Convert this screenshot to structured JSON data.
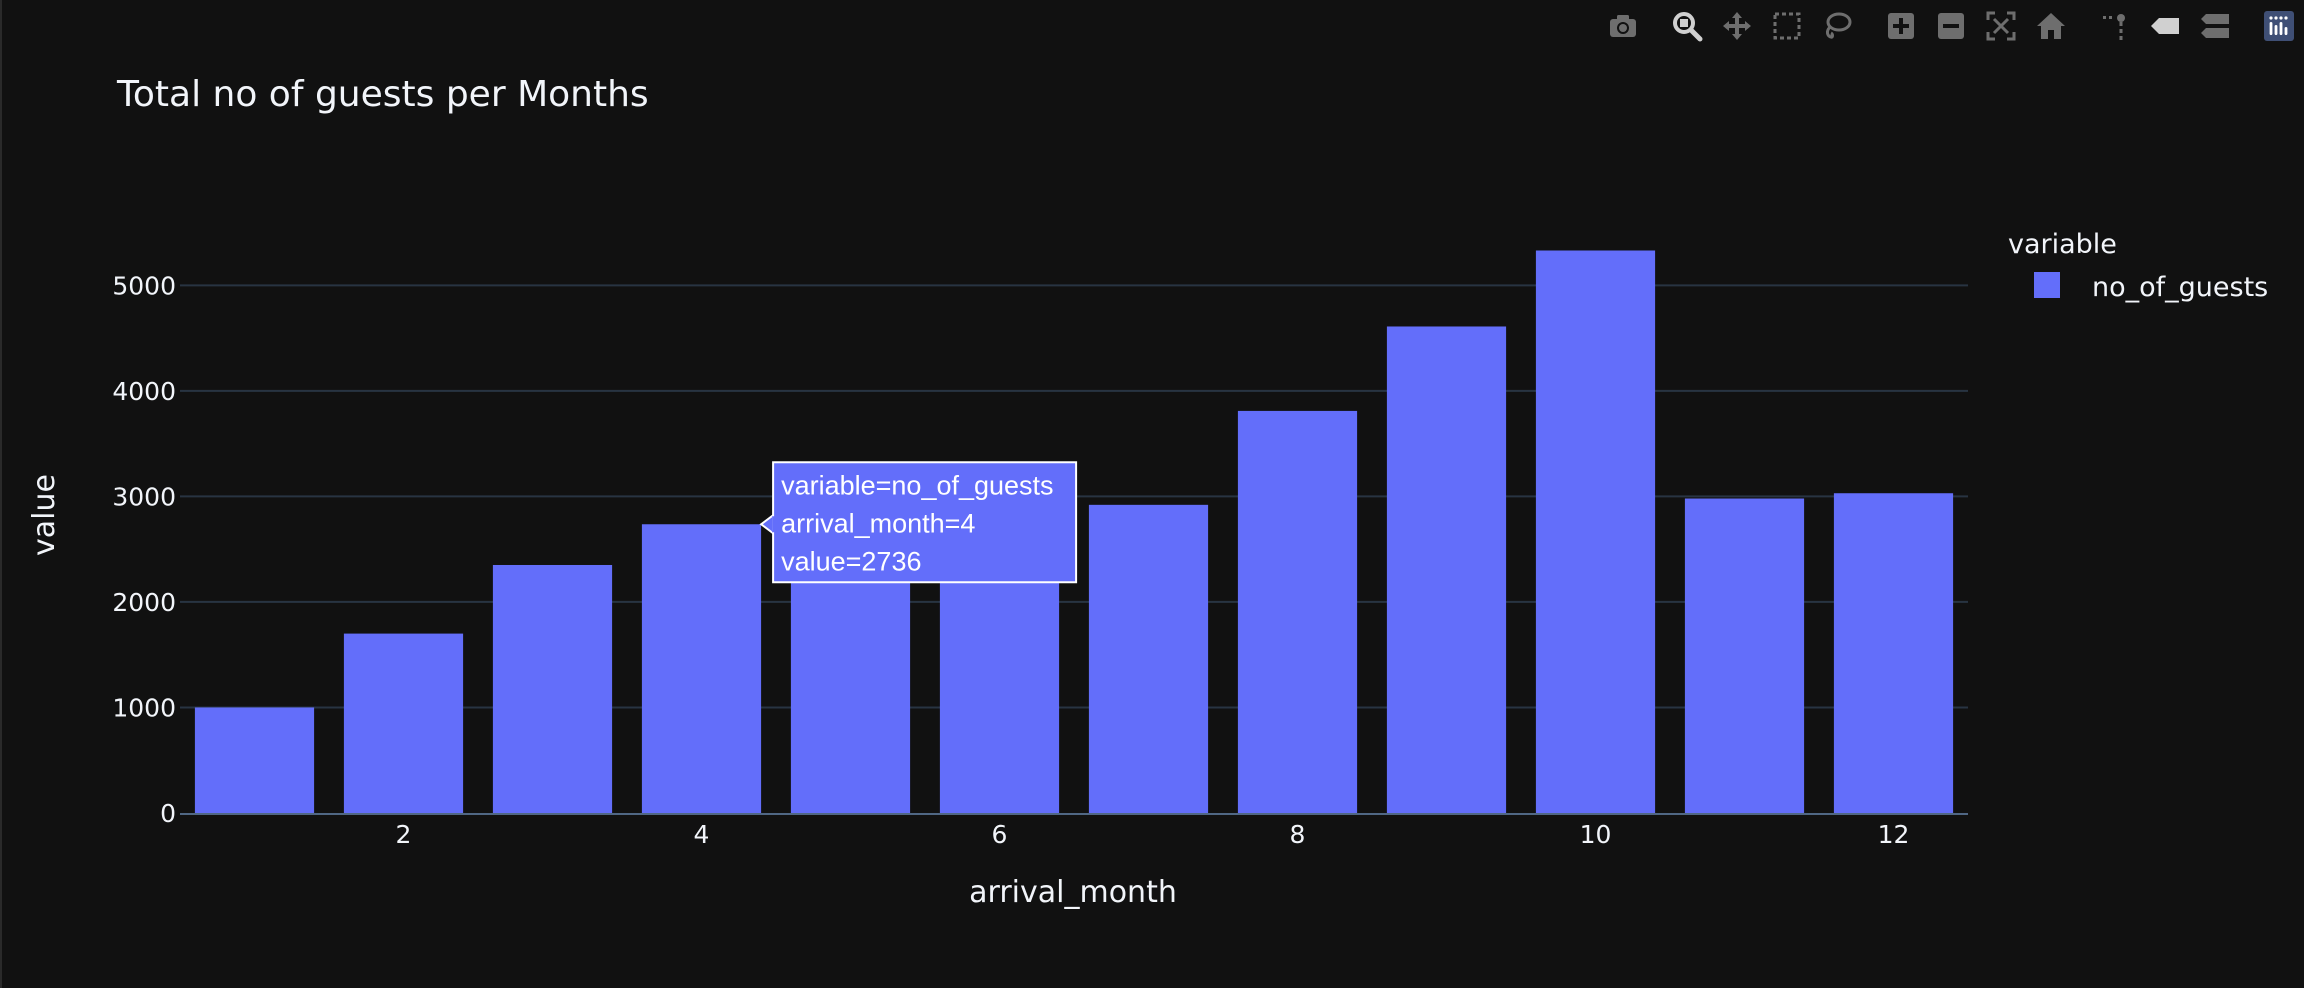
{
  "chart_data": {
    "type": "bar",
    "title": "Total no of guests per Months",
    "xlabel": "arrival_month",
    "ylabel": "value",
    "x": [
      1,
      2,
      3,
      4,
      5,
      6,
      7,
      8,
      9,
      10,
      11,
      12
    ],
    "xticks": [
      "2",
      "4",
      "6",
      "8",
      "10",
      "12"
    ],
    "xtick_values": [
      2,
      4,
      6,
      8,
      10,
      12
    ],
    "yticks": [
      "0",
      "1000",
      "2000",
      "3000",
      "4000",
      "5000"
    ],
    "ytick_values": [
      0,
      1000,
      2000,
      3000,
      4000,
      5000
    ],
    "xlim": [
      0.5,
      12.5
    ],
    "ylim": [
      0,
      5600
    ],
    "grid": true,
    "series": [
      {
        "name": "no_of_guests",
        "color": "#636efa",
        "values": [
          1000,
          1700,
          2350,
          2736,
          2300,
          2300,
          2920,
          3810,
          4610,
          5330,
          2980,
          3030
        ]
      }
    ],
    "legend": {
      "title": "variable",
      "placement": "right-top",
      "entries": [
        "no_of_guests"
      ]
    },
    "tooltip": {
      "index": 3,
      "lines": [
        "variable=no_of_guests",
        "arrival_month=4",
        "value=2736"
      ]
    },
    "colors": {
      "background": "#111111",
      "grid": "#283442",
      "axis": "#506784",
      "text": "#f2f5fa",
      "modebar": "#6e6e6e"
    }
  },
  "modebar": {
    "icons": [
      "camera-icon",
      "zoom-icon",
      "pan-icon",
      "box-select-icon",
      "lasso-icon",
      "zoom-in-icon",
      "zoom-out-icon",
      "autoscale-icon",
      "reset-axes-icon",
      "spike-lines-icon",
      "hover-closest-icon",
      "hover-compare-icon",
      "plotly-logo-icon"
    ]
  }
}
